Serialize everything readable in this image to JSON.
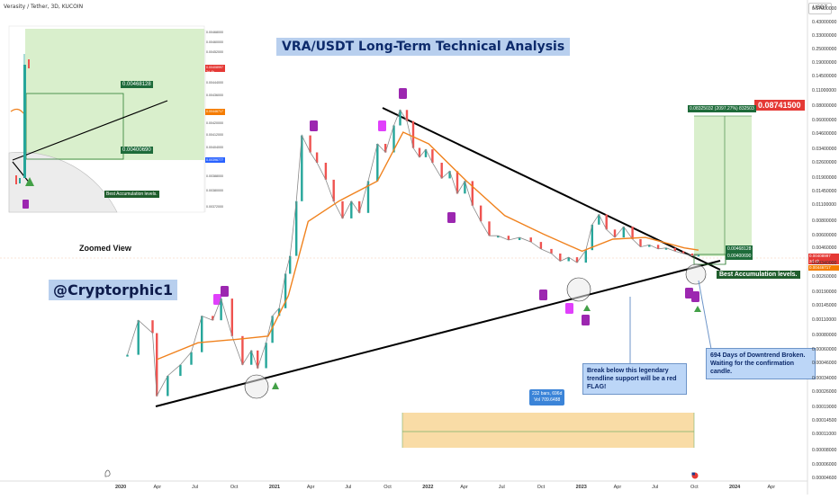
{
  "header": {
    "symbol": "Verasity / Tether, 3D, KUCOIN",
    "currency": "USDT"
  },
  "annotations": {
    "title": "VRA/USDT Long-Term Technical Analysis",
    "handle": "@Cryptorphic1",
    "zoomed_view": "Zoomed View",
    "best_accumulation": "Best Accumulation levels.",
    "best_accumulation_mini": "Best Accumulation levels.",
    "note_break_line1": "Break below this legendary",
    "note_break_line2": "trendline support will be a red FLAG!",
    "note_downtrend_line1": "694 Days of Downtrend Broken.",
    "note_downtrend_line2": "Waiting for the confirmation candle.",
    "bars_line1": "232 bars, 696d",
    "bars_line2": "Vol 709.6488",
    "target_price": "0.08741500",
    "target_info": "0.08325032 (2097.27%) 832503",
    "level_upper": "0.00468128",
    "level_lower": "0.00400690",
    "zoom_level_upper": "0.00468128",
    "zoom_level_lower": "0.00400690",
    "price_last": "0.00408997",
    "price_countdown": "2d 4h",
    "price_ma": "0.00446717",
    "zoom_price_last": "0.00408997",
    "zoom_price_countdown": "2d 4h",
    "zoom_price_ma": "0.00446717",
    "zoom_price_low": "0.00396777"
  },
  "colors": {
    "ma_line": "#f0821e",
    "trendline": "#000000",
    "up_candle": "#26a69a",
    "down_candle": "#ef5350",
    "target_zone": "#d9efcc",
    "time_zone": "#f9dca6",
    "signal_marker": "#9c27b0",
    "up_arrow": "#43a047",
    "accumulation_label": "#1f5d2c"
  },
  "chart_data": {
    "type": "line",
    "title": "VRA/USDT Long-Term Technical Analysis",
    "xlabel": "",
    "ylabel": "",
    "y_scale": "log",
    "x_ticks": [
      "2020",
      "Apr",
      "Jul",
      "Oct",
      "2021",
      "Apr",
      "Jul",
      "Oct",
      "2022",
      "Apr",
      "Jul",
      "Oct",
      "2023",
      "Apr",
      "Jul",
      "Oct",
      "2024",
      "Apr"
    ],
    "y_ticks": [
      "0.57000000",
      "0.43000000",
      "0.33000000",
      "0.25000000",
      "0.19000000",
      "0.14500000",
      "0.11000000",
      "0.08000000",
      "0.06000000",
      "0.04600000",
      "0.03400000",
      "0.02600000",
      "0.01900000",
      "0.01450000",
      "0.01100000",
      "0.00800000",
      "0.00600000",
      "0.00460000",
      "0.00340000",
      "0.00260000",
      "0.00190000",
      "0.00145000",
      "0.00110000",
      "0.00080000",
      "0.00060000",
      "0.00046000",
      "0.00034000",
      "0.00026000",
      "0.00019000",
      "0.00014500",
      "0.00011000",
      "0.00008000",
      "0.00006000",
      "0.00004600"
    ],
    "series": [
      {
        "x": [
          "2020-01-15",
          "2020-02-10",
          "2020-03-15",
          "2020-03-25",
          "2020-04-20",
          "2020-05-20",
          "2020-06-15",
          "2020-07-10",
          "2020-08-05",
          "2020-08-25",
          "2020-09-20",
          "2020-10-15",
          "2020-11-05",
          "2020-11-20",
          "2020-12-10",
          "2020-12-25",
          "2021-01-10",
          "2021-01-25",
          "2021-02-05",
          "2021-02-20",
          "2021-03-05",
          "2021-03-25",
          "2021-04-10",
          "2021-05-01",
          "2021-05-20",
          "2021-06-10",
          "2021-07-01",
          "2021-07-20",
          "2021-08-10",
          "2021-09-01",
          "2021-09-20",
          "2021-10-10",
          "2021-10-25",
          "2021-11-10",
          "2021-11-25",
          "2021-12-10",
          "2021-12-25",
          "2022-01-10",
          "2022-02-01",
          "2022-02-20",
          "2022-03-10",
          "2022-03-28",
          "2022-04-15",
          "2022-05-05",
          "2022-05-25",
          "2022-06-15",
          "2022-07-10",
          "2022-08-05",
          "2022-09-01",
          "2022-09-25",
          "2022-10-20",
          "2022-11-10",
          "2022-11-30",
          "2022-12-20",
          "2023-01-10",
          "2023-01-25",
          "2023-02-10",
          "2023-02-28",
          "2023-03-20",
          "2023-04-10",
          "2023-05-01",
          "2023-05-20",
          "2023-06-10",
          "2023-07-01",
          "2023-07-20",
          "2023-08-10",
          "2023-08-30",
          "2023-09-20",
          "2023-10-05"
        ],
        "y": [
          0.00055,
          0.0011,
          0.00085,
          0.00024,
          0.00036,
          0.00045,
          0.00058,
          0.0012,
          0.0011,
          0.0017,
          0.0008,
          0.00045,
          0.0006,
          0.00042,
          0.0007,
          0.0012,
          0.0014,
          0.0028,
          0.004,
          0.012,
          0.045,
          0.032,
          0.026,
          0.0185,
          0.012,
          0.0085,
          0.012,
          0.0095,
          0.018,
          0.038,
          0.032,
          0.055,
          0.075,
          0.06,
          0.035,
          0.029,
          0.034,
          0.026,
          0.019,
          0.022,
          0.014,
          0.018,
          0.011,
          0.008,
          0.006,
          0.006,
          0.0055,
          0.0058,
          0.0053,
          0.0046,
          0.0042,
          0.0036,
          0.0039,
          0.0035,
          0.0045,
          0.0075,
          0.0092,
          0.0068,
          0.0058,
          0.0072,
          0.0056,
          0.0048,
          0.005,
          0.0046,
          0.0047,
          0.0044,
          0.0042,
          0.004,
          0.0041
        ]
      },
      {
        "x": [
          "2020-03-25",
          "2020-07-01",
          "2020-10-01",
          "2020-12-15",
          "2021-02-01",
          "2021-03-20",
          "2021-06-01",
          "2021-09-01",
          "2021-11-01",
          "2022-01-01",
          "2022-04-01",
          "2022-07-01",
          "2022-10-01",
          "2023-01-01",
          "2023-03-15",
          "2023-06-01",
          "2023-09-01",
          "2023-10-05"
        ],
        "y": [
          0.0005,
          0.0007,
          0.00075,
          0.0008,
          0.0018,
          0.008,
          0.012,
          0.018,
          0.048,
          0.038,
          0.018,
          0.009,
          0.0062,
          0.0044,
          0.0056,
          0.0058,
          0.0047,
          0.0045
        ]
      }
    ]
  }
}
